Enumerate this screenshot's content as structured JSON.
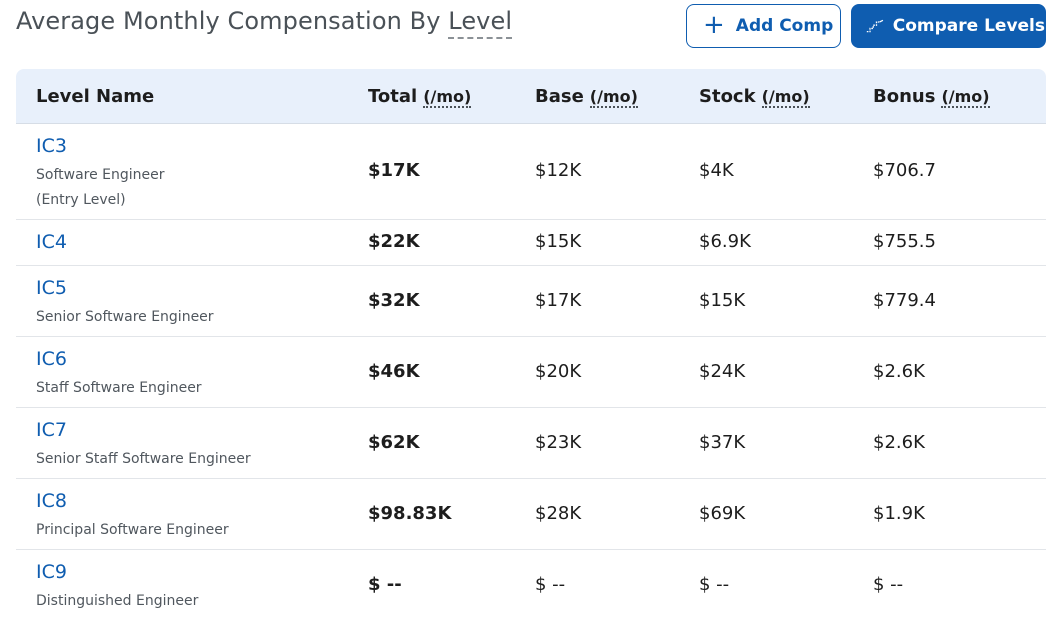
{
  "header": {
    "title_prefix": "Average Monthly Compensation By",
    "title_link": "Level",
    "add_button_label": "Add Comp",
    "compare_button_label": "Compare Levels"
  },
  "table": {
    "columns": {
      "level": "Level Name",
      "total": "Total",
      "base": "Base",
      "stock": "Stock",
      "bonus": "Bonus",
      "unit": "(/mo)"
    },
    "rows": [
      {
        "level": "IC3",
        "title": "Software Engineer",
        "title2": "(Entry Level)",
        "total": "$17K",
        "base": "$12K",
        "stock": "$4K",
        "bonus": "$706.7"
      },
      {
        "level": "IC4",
        "title": "",
        "title2": "",
        "total": "$22K",
        "base": "$15K",
        "stock": "$6.9K",
        "bonus": "$755.5"
      },
      {
        "level": "IC5",
        "title": "Senior Software Engineer",
        "title2": "",
        "total": "$32K",
        "base": "$17K",
        "stock": "$15K",
        "bonus": "$779.4"
      },
      {
        "level": "IC6",
        "title": "Staff Software Engineer",
        "title2": "",
        "total": "$46K",
        "base": "$20K",
        "stock": "$24K",
        "bonus": "$2.6K"
      },
      {
        "level": "IC7",
        "title": "Senior Staff Software Engineer",
        "title2": "",
        "total": "$62K",
        "base": "$23K",
        "stock": "$37K",
        "bonus": "$2.6K"
      },
      {
        "level": "IC8",
        "title": "Principal Software Engineer",
        "title2": "",
        "total": "$98.83K",
        "base": "$28K",
        "stock": "$69K",
        "bonus": "$1.9K"
      },
      {
        "level": "IC9",
        "title": "Distinguished Engineer",
        "title2": "",
        "total": "$ --",
        "base": "$ --",
        "stock": "$ --",
        "bonus": "$ --"
      }
    ]
  },
  "icons": {
    "add": "plus-icon",
    "compare": "stairs-chart-icon"
  },
  "colors": {
    "accent": "#0f5db0",
    "header_bg": "#e8f0fb",
    "title_text": "#4a5157"
  }
}
